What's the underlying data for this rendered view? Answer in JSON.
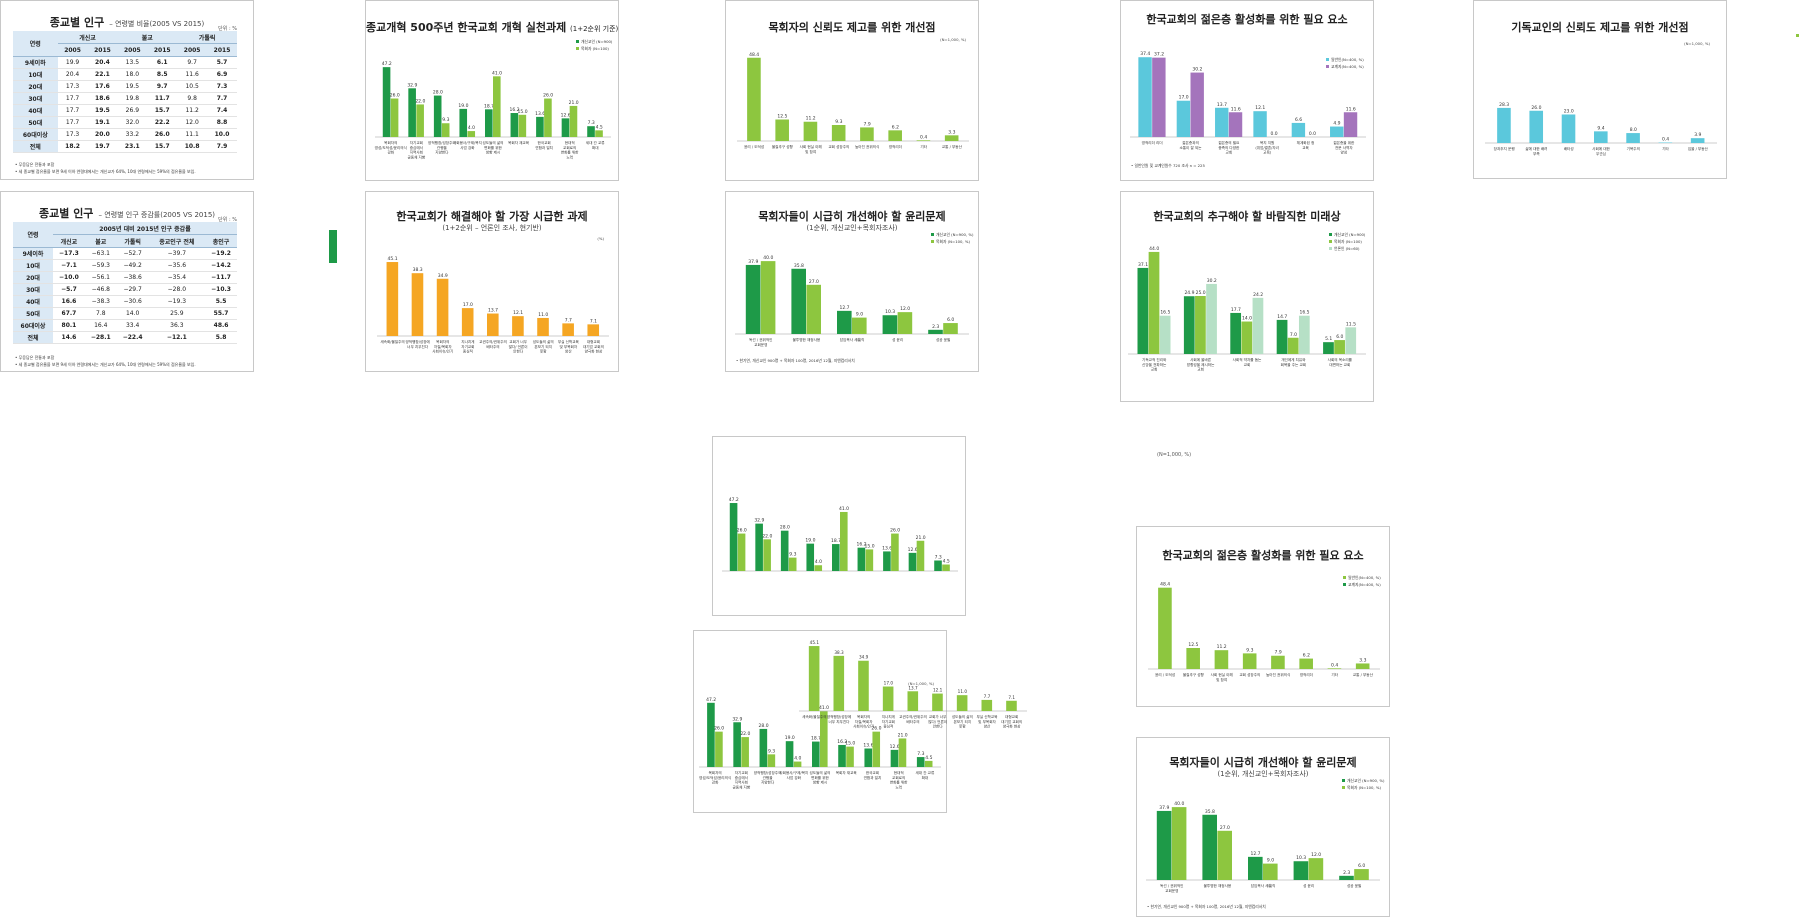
{
  "colors": {
    "dark_green": "#1e9a48",
    "light_green": "#8dc63f",
    "orange": "#f5a623",
    "cyan": "#5bc8dc",
    "purple": "#a474bc",
    "pale_green": "#b6e0c6",
    "header_blue": "#dbe9f5"
  },
  "tables": [
    {
      "title": "종교별 인구",
      "subtitle": "– 연령별 비율(2005 VS 2015)",
      "unit": "단위 : %",
      "header_row1": [
        "연령",
        "개신교",
        "불교",
        "가톨릭"
      ],
      "header_row2": [
        "2005",
        "2015",
        "2005",
        "2015",
        "2005",
        "2015"
      ],
      "rows": [
        [
          "9세이하",
          "19.9",
          "20.4",
          "13.5",
          "6.1",
          "9.7",
          "5.7"
        ],
        [
          "10대",
          "20.4",
          "22.1",
          "18.0",
          "8.5",
          "11.6",
          "6.9"
        ],
        [
          "20대",
          "17.3",
          "17.6",
          "19.5",
          "9.7",
          "10.5",
          "7.3"
        ],
        [
          "30대",
          "17.7",
          "18.6",
          "19.8",
          "11.7",
          "9.8",
          "7.7"
        ],
        [
          "40대",
          "17.7",
          "19.5",
          "26.9",
          "15.7",
          "11.2",
          "7.4"
        ],
        [
          "50대",
          "17.7",
          "19.1",
          "32.0",
          "22.2",
          "12.0",
          "8.8"
        ],
        [
          "60대이상",
          "17.3",
          "20.0",
          "33.2",
          "26.0",
          "11.1",
          "10.0"
        ],
        [
          "전체",
          "18.2",
          "19.7",
          "23.1",
          "15.7",
          "10.8",
          "7.9"
        ]
      ],
      "notes": [
        "• 무응답은 전통과 포함",
        "• 세 종교별 점유율을 보면 9세 이하 연령대에서는 개신교가 64%, 10대 연령에서는 59%의 점유율을 보임."
      ]
    },
    {
      "title": "종교별 인구",
      "subtitle": "– 연령별 인구 증감률(2005 VS 2015)",
      "unit": "단위 : %",
      "header_row1": [
        "연령",
        "2005년 대비 2015년 인구 증감률"
      ],
      "header_row2": [
        "개신교",
        "불교",
        "가톨릭",
        "종교인구 전체",
        "총인구"
      ],
      "rows": [
        [
          "9세이하",
          "−17.3",
          "−63.1",
          "−52.7",
          "−39.7",
          "−19.2"
        ],
        [
          "10대",
          "−7.1",
          "−59.3",
          "−49.2",
          "−35.6",
          "−14.2"
        ],
        [
          "20대",
          "−10.0",
          "−56.1",
          "−38.6",
          "−35.4",
          "−11.7"
        ],
        [
          "30대",
          "−5.7",
          "−46.8",
          "−29.7",
          "−28.0",
          "−10.3"
        ],
        [
          "40대",
          "16.6",
          "−38.3",
          "−30.6",
          "−19.3",
          "5.5"
        ],
        [
          "50대",
          "67.7",
          "7.8",
          "14.0",
          "25.9",
          "55.7"
        ],
        [
          "60대이상",
          "80.1",
          "16.4",
          "33.4",
          "36.3",
          "48.6"
        ],
        [
          "전체",
          "14.6",
          "−28.1",
          "−22.4",
          "−12.1",
          "5.8"
        ]
      ],
      "notes": [
        "• 무응답은 전통과 포함",
        "• 세 종교별 점유율을 보면 9세 이하 연령대에서는 개신교가 64%, 10대 연령에서는 59%의 점유율을 보임."
      ]
    }
  ],
  "chart_data": [
    {
      "id": "reform",
      "type": "bar",
      "title": "종교개혁 500주년 한국교회 개혁 실천과제",
      "title_suffix": "(1+2순위 기준)",
      "categories": [
        "목회자의 영성/도덕성/윤리의식 강화",
        "자기교회 중심에서 지역사회 공동체 지향",
        "양적팽창/성장주의 관행을 지양한다",
        "사회봉사/구제/복지 사업 강화",
        "성도들의 삶의 변화를 위한 방향 제시",
        "목회자 재교육",
        "한국교회 연합과 일치",
        "현대적 교회로의 변화를 위한 노력",
        "세대 간 교류 확대"
      ],
      "series": [
        {
          "name": "개신교인 (N=900)",
          "color": "#1e9a48",
          "values": [
            47.2,
            32.9,
            28.0,
            19.0,
            18.7,
            16.2,
            13.6,
            12.6,
            7.3
          ]
        },
        {
          "name": "목회자 (N=100)",
          "color": "#8dc63f",
          "values": [
            26.0,
            22.0,
            9.3,
            4.0,
            41.0,
            15.0,
            26.0,
            21.0,
            4.5
          ]
        }
      ],
      "ylim": [
        0,
        50
      ]
    },
    {
      "id": "trust-pastor",
      "type": "bar",
      "title": "목회자의 신뢰도 제고를 위한 개선점",
      "unit": "(N=1,000, %)",
      "categories": [
        "윤리 / 도덕성",
        "물질추구 성향",
        "사회 현실 이해 및 참여",
        "교회 성장주의",
        "높아진 권위의식",
        "영적리더",
        "기타",
        "교통 / 부동산"
      ],
      "series": [
        {
          "name": "",
          "color": "#8dc63f",
          "values": [
            48.4,
            12.5,
            11.2,
            9.3,
            7.9,
            6.2,
            0.4,
            3.3
          ]
        }
      ],
      "ylim": [
        0,
        50
      ]
    },
    {
      "id": "youth",
      "type": "bar",
      "title": "한국교회의 젊은층 활성화를 위한 필요 요소",
      "categories": [
        "영적리더 리더",
        "젊은층과의 소통이 잘 되는",
        "젊은층의 필요 충족의 다양한 교회",
        "복지 지원 (취업/결혼/자녀 교육)",
        "체계화된 청 교육",
        "젊은층을 위한 전문 사역자 양성"
      ],
      "series": [
        {
          "name": "일반인(N=400, %)",
          "color": "#5bc8dc",
          "values": [
            37.4,
            17.0,
            13.7,
            12.1,
            6.6,
            4.9
          ]
        },
        {
          "name": "교계지(N=400, %)",
          "color": "#a474bc",
          "values": [
            37.2,
            30.2,
            11.6,
            0.0,
            0.0,
            11.6
          ]
        }
      ],
      "note": "• 일반인원 및 교계인원수 720 조사 n = 225",
      "ylim": [
        0,
        45
      ]
    },
    {
      "id": "trust-christian",
      "type": "bar",
      "title": "기독교인의 신뢰도 제고를 위한 개선점",
      "unit": "(N=1,000, %)",
      "categories": [
        "장과추지 운행",
        "삶에 대한 배려 부족",
        "배타성",
        "사회에 대한 무관심",
        "기복주의",
        "기타",
        "입을 / 부동산"
      ],
      "series": [
        {
          "name": "",
          "color": "#5bc8dc",
          "values": [
            28.3,
            26.0,
            23.0,
            9.4,
            8.0,
            0.4,
            3.9
          ]
        }
      ],
      "ylim": [
        0,
        50
      ]
    },
    {
      "id": "urgent",
      "type": "bar",
      "title": "한국교회가 해결해야 할 가장 시급한 과제",
      "subtitle": "(1+2순위 – 언론인 조사, 현기반)",
      "unit": "(%)",
      "categories": [
        "세속화/물질주의",
        "양적팽창/성장에 너무 치우친다",
        "목회자의 자질/목회자 사회이슈/인기",
        "지나치게 자기교회 중심적",
        "교권주의/권위주의 배타주의",
        "교회가 너무 많다/ 언론이 안한다",
        "성도들의 삶의 본보기 되지 못함",
        "부실 신학교육 및 부목회자 양산",
        "대형교회 대기업 교회의 양극화 현상"
      ],
      "series": [
        {
          "name": "",
          "color": "#f5a623",
          "values": [
            45.1,
            38.3,
            34.9,
            17.0,
            13.7,
            12.1,
            11.0,
            7.7,
            7.1
          ]
        }
      ],
      "ylim": [
        0,
        50
      ]
    },
    {
      "id": "ethics",
      "type": "bar",
      "title": "목회자들이 시급히 개선해야 할 윤리문제",
      "subtitle": "(1순위, 개신교인+목회자조사)",
      "categories": [
        "독선 / 권위적인 교회운영",
        "불투명한 재정사용",
        "담임목사 세襲직",
        "성 윤리",
        "성공 윤필"
      ],
      "series": [
        {
          "name": "개신교인 (N=900, %)",
          "color": "#1e9a48",
          "values": [
            37.9,
            35.8,
            12.7,
            10.3,
            2.3
          ]
        },
        {
          "name": "목회자 (N=100, %)",
          "color": "#8dc63f",
          "values": [
            40.0,
            27.0,
            9.0,
            12.0,
            6.0
          ]
        }
      ],
      "note": "• 한기연, 개신교인 900명 + 목회자 100명, 2016년 12월, 지앤컴리서치",
      "ylim": [
        0,
        45
      ]
    },
    {
      "id": "future",
      "type": "bar",
      "title": "한국교회의 추구해야 할 바람직한 미래상",
      "categories": [
        "기독교적 진리와 신앙을 전파하는 교회",
        "사회에 올바른 방향성을 제시하는 교회",
        "사회적 약자를 돕는 교회",
        "개인에게 치유와 회복을 주는 교회",
        "사회의 목소리를 대변하는 교회"
      ],
      "series": [
        {
          "name": "개신교인 (N=900)",
          "color": "#1e9a48",
          "values": [
            37.1,
            24.9,
            17.7,
            14.7,
            5.1
          ]
        },
        {
          "name": "목회자 (N=100)",
          "color": "#8dc63f",
          "values": [
            44.0,
            25.0,
            14.0,
            7.0,
            6.0
          ]
        },
        {
          "name": "언론인 (N=60)",
          "color": "#b6e0c6",
          "values": [
            16.5,
            30.2,
            24.2,
            16.5,
            11.5
          ]
        }
      ],
      "ylim": [
        0,
        50
      ]
    },
    {
      "id": "reform-copy",
      "type": "bar",
      "categories": [
        "",
        "",
        "",
        "",
        "",
        "",
        "",
        "",
        ""
      ],
      "series": [
        {
          "name": "",
          "color": "#1e9a48",
          "values": [
            47.2,
            32.9,
            28.0,
            19.0,
            18.7,
            16.2,
            13.6,
            12.6,
            7.3
          ]
        },
        {
          "name": "",
          "color": "#8dc63f",
          "values": [
            26.0,
            22.0,
            9.3,
            4.0,
            41.0,
            15.0,
            26.0,
            21.0,
            4.5
          ]
        }
      ],
      "ylim": [
        0,
        50
      ]
    },
    {
      "id": "youth-copy",
      "type": "bar",
      "title": "한국교회의 젊은층 활성화를 위한 필요 요소",
      "categories": [
        "윤리 / 도덕성",
        "물질추구 성향",
        "사회 현실 이해 및 참여",
        "교회 성장주의",
        "높아진 권위의식",
        "영적리더",
        "기타",
        "교통 / 부동산"
      ],
      "series": [
        {
          "name": "일반인(N=400, %)",
          "color": "#8dc63f",
          "values": [
            48.4,
            12.5,
            11.2,
            9.3,
            7.9,
            6.2,
            0.4,
            3.3
          ]
        }
      ],
      "legend_extra": "교계지(N=400, %)",
      "ylim": [
        0,
        50
      ]
    },
    {
      "id": "ethics-copy",
      "type": "bar",
      "title": "목회자들이 시급히 개선해야 할 윤리문제",
      "subtitle": "(1순위, 개신교인+목회자조사)",
      "categories": [
        "독선 / 권위적인 교회운영",
        "불투명한 재정사용",
        "담임목사 세襲직",
        "성 윤리",
        "성공 윤필"
      ],
      "series": [
        {
          "name": "개신교인 (N=900, %)",
          "color": "#1e9a48",
          "values": [
            37.9,
            35.8,
            12.7,
            10.3,
            2.3
          ]
        },
        {
          "name": "목회자 (N=100, %)",
          "color": "#8dc63f",
          "values": [
            40.0,
            27.0,
            9.0,
            12.0,
            6.0
          ]
        }
      ],
      "note": "• 한기연, 개신교인 900명 + 목회자 100명, 2016년 12월, 지앤컴리서치",
      "ylim": [
        0,
        45
      ]
    },
    {
      "id": "overlap",
      "type": "bar",
      "categories": [
        "목회자의 영성/도덕성/윤리의식 강화",
        "자기교회 중심에서 지역사회 공동체 지향",
        "양적팽창/성장주의 관행을 지양한다",
        "사회봉사/구제/복지 사업 강화",
        "성도들의 삶의 변화를 위한 방향 제시",
        "목회자 재교육",
        "한국교회 연합과 일치",
        "현대적 교회로의 변화를 위한 노력",
        "세대 간 교류 확대"
      ],
      "series": [
        {
          "name": "",
          "color": "#1e9a48",
          "values": [
            47.2,
            32.9,
            28.0,
            19.0,
            18.7,
            16.2,
            13.6,
            12.6,
            7.3
          ]
        },
        {
          "name": "",
          "color": "#8dc63f",
          "values": [
            26.0,
            22.0,
            9.3,
            4.0,
            41.0,
            15.0,
            26.0,
            21.0,
            4.5
          ]
        }
      ],
      "ylim": [
        0,
        50
      ]
    },
    {
      "id": "overlap-urgent",
      "type": "bar",
      "unit": "(N=1,000, %)",
      "categories": [
        "세속화/물질주의",
        "양적팽창/성장에 너무 치우친다",
        "목회자의 자질/목회자 사회이슈/인기",
        "지나치게 자기교회 중심적",
        "교권주의/권위주의 배타주의",
        "교회가 너무 많다/ 언론이 안한다",
        "성도들의 삶의 본보기 되지 못함",
        "부실 신학교육 및 부목회자 양산",
        "대형교회 대기업 교회의 양극화 현상"
      ],
      "series": [
        {
          "name": "",
          "color": "#8dc63f",
          "values": [
            45.1,
            38.3,
            34.9,
            17.0,
            13.7,
            12.1,
            11.0,
            7.7,
            7.1
          ]
        }
      ],
      "ylim": [
        0,
        50
      ]
    }
  ],
  "stray_label": "(N=1,000, %)"
}
